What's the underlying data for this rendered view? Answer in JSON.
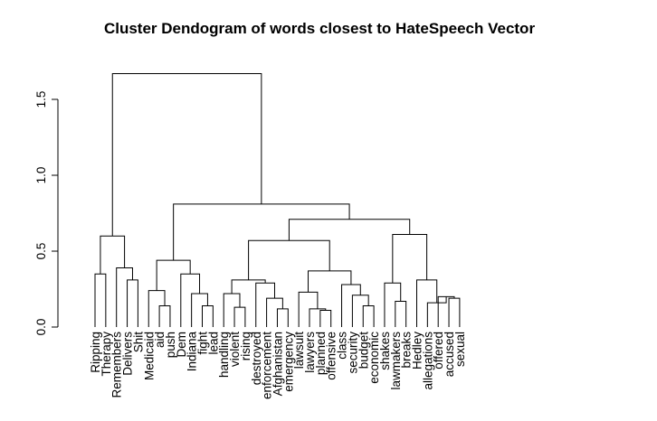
{
  "chart_data": {
    "type": "dendrogram",
    "title": "Cluster Dendogram of words closest to HateSpeech Vector",
    "ylabel": "",
    "xlabel": "",
    "ylim": [
      0,
      1.8
    ],
    "yticks": [
      0.0,
      0.5,
      1.0,
      1.5
    ],
    "ytick_labels": [
      "0.0",
      "0.5",
      "1.0",
      "1.5"
    ],
    "leaves": [
      "Ripping",
      "Therapy",
      "Remembers",
      "Delivers",
      "Shit",
      "Medicaid",
      "aid",
      "push",
      "Dem",
      "Indiana",
      "fight",
      "lead",
      "handling",
      "violent",
      "rising",
      "destroyed",
      "enforcement",
      "Afghanistan",
      "emergency",
      "lawsuit",
      "lawyers",
      "planned",
      "offensive",
      "class",
      "security",
      "budget",
      "economic",
      "shakes",
      "lawmakers",
      "breaks",
      "Hedley",
      "allegations",
      "offered",
      "accused",
      "sexual"
    ],
    "merges": [
      [
        0,
        1,
        0.35
      ],
      [
        3,
        4,
        0.31
      ],
      [
        2,
        36,
        0.39
      ],
      [
        35,
        37,
        0.6
      ],
      [
        6,
        7,
        0.14
      ],
      [
        5,
        39,
        0.24
      ],
      [
        10,
        11,
        0.14
      ],
      [
        9,
        41,
        0.22
      ],
      [
        8,
        42,
        0.35
      ],
      [
        40,
        43,
        0.44
      ],
      [
        13,
        14,
        0.13
      ],
      [
        12,
        45,
        0.22
      ],
      [
        17,
        18,
        0.12
      ],
      [
        16,
        47,
        0.19
      ],
      [
        15,
        48,
        0.29
      ],
      [
        46,
        49,
        0.31
      ],
      [
        21,
        22,
        0.11
      ],
      [
        20,
        51,
        0.12
      ],
      [
        19,
        52,
        0.23
      ],
      [
        25,
        26,
        0.14
      ],
      [
        24,
        54,
        0.21
      ],
      [
        23,
        55,
        0.28
      ],
      [
        53,
        56,
        0.37
      ],
      [
        50,
        57,
        0.57
      ],
      [
        28,
        29,
        0.17
      ],
      [
        27,
        59,
        0.29
      ],
      [
        33,
        34,
        0.19
      ],
      [
        32,
        61,
        0.2
      ],
      [
        31,
        62,
        0.16
      ],
      [
        30,
        63,
        0.31
      ],
      [
        60,
        64,
        0.61
      ],
      [
        58,
        65,
        0.71
      ],
      [
        44,
        66,
        0.81
      ],
      [
        38,
        67,
        1.67
      ]
    ]
  }
}
